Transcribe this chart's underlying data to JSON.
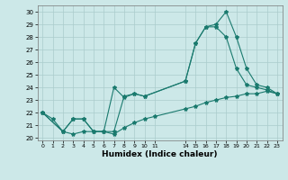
{
  "xlabel": "Humidex (Indice chaleur)",
  "bg_color": "#cce8e8",
  "line_color": "#1a7a6e",
  "grid_color": "#aacccc",
  "xlim": [
    -0.5,
    23.5
  ],
  "ylim": [
    19.8,
    30.5
  ],
  "yticks": [
    20,
    21,
    22,
    23,
    24,
    25,
    26,
    27,
    28,
    29,
    30
  ],
  "series1_x": [
    0,
    1,
    2,
    3,
    4,
    5,
    6,
    7,
    8,
    9,
    10,
    11,
    14,
    15,
    16,
    17,
    18,
    19,
    20,
    21,
    22,
    23
  ],
  "series1_y": [
    22.0,
    21.5,
    20.5,
    20.3,
    20.5,
    20.5,
    20.5,
    20.3,
    20.8,
    21.2,
    21.5,
    21.7,
    22.3,
    22.5,
    22.8,
    23.0,
    23.2,
    23.3,
    23.5,
    23.5,
    23.7,
    23.5
  ],
  "series2_x": [
    0,
    2,
    3,
    4,
    5,
    6,
    7,
    8,
    9,
    10,
    14,
    15,
    16,
    17,
    18,
    19,
    20,
    21,
    22,
    23
  ],
  "series2_y": [
    22.0,
    20.5,
    21.5,
    21.5,
    20.5,
    20.5,
    24.0,
    23.2,
    23.5,
    23.3,
    24.5,
    27.5,
    28.8,
    28.8,
    28.0,
    25.5,
    24.2,
    24.0,
    23.8,
    23.5
  ],
  "series3_x": [
    0,
    2,
    3,
    4,
    5,
    6,
    7,
    8,
    9,
    10,
    14,
    15,
    16,
    17,
    18,
    19,
    20,
    21,
    22,
    23
  ],
  "series3_y": [
    22.0,
    20.5,
    21.5,
    21.5,
    20.5,
    20.5,
    20.5,
    23.3,
    23.5,
    23.3,
    24.5,
    27.5,
    28.8,
    29.0,
    30.0,
    28.0,
    25.5,
    24.2,
    24.0,
    23.5
  ],
  "markersize": 3,
  "linewidth": 0.8
}
